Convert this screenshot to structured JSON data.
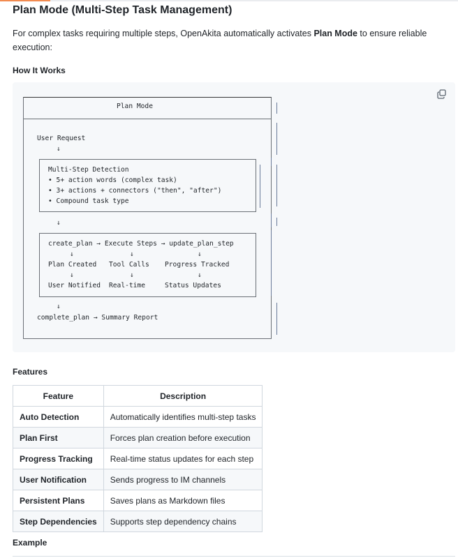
{
  "title": "Plan Mode (Multi-Step Task Management)",
  "intro": {
    "before": "For complex tasks requiring multiple steps, OpenAkita automatically activates ",
    "bold": "Plan Mode",
    "after": " to ensure reliable execution:"
  },
  "how_it_works": "How It Works",
  "diagram": {
    "header": "Plan Mode",
    "user_request": "User Request",
    "arrow": "↓",
    "detection": [
      "Multi-Step Detection",
      "• 5+ action words (complex task)",
      "• 3+ actions + connectors (\"then\", \"after\")",
      "• Compound task type"
    ],
    "flow_row": "create_plan → Execute Steps → update_plan_step",
    "row2": [
      "Plan Created",
      "Tool Calls",
      "Progress Tracked"
    ],
    "row3": [
      "User Notified",
      "Real-time",
      "Status Updates"
    ],
    "final": "complete_plan → Summary Report"
  },
  "copy_icon": "copy-icon",
  "features_heading": "Features",
  "table": {
    "headers": [
      "Feature",
      "Description"
    ],
    "rows": [
      [
        "Auto Detection",
        "Automatically identifies multi-step tasks"
      ],
      [
        "Plan First",
        "Forces plan creation before execution"
      ],
      [
        "Progress Tracking",
        "Real-time status updates for each step"
      ],
      [
        "User Notification",
        "Sends progress to IM channels"
      ],
      [
        "Persistent Plans",
        "Saves plans as Markdown files"
      ],
      [
        "Step Dependencies",
        "Supports step dependency chains"
      ]
    ]
  },
  "example_heading": "Example"
}
